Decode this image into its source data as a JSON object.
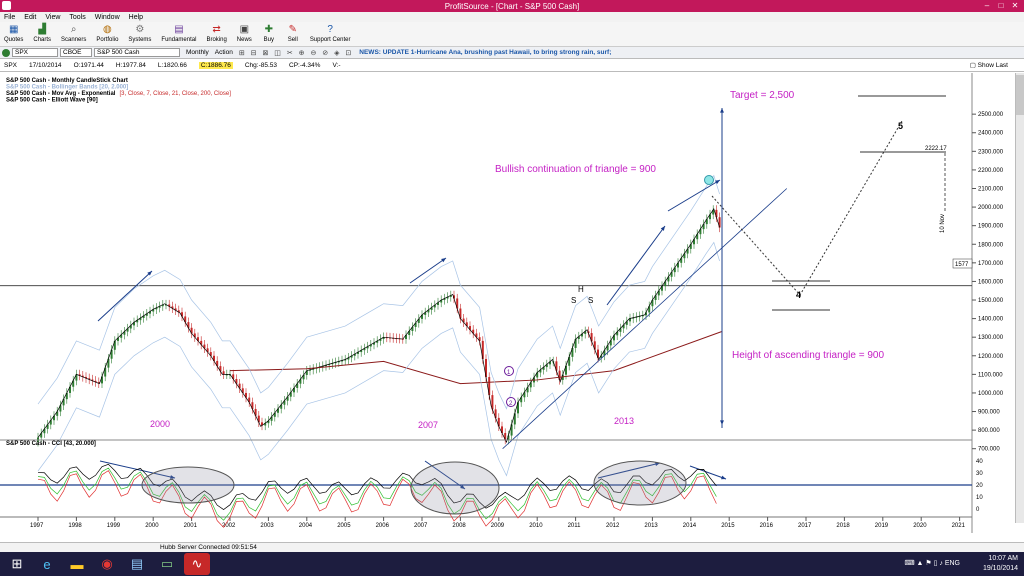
{
  "window": {
    "title": "ProfitSource - [Chart - S&P 500 Cash]",
    "min": "–",
    "max": "□",
    "close": "✕"
  },
  "menu": [
    "File",
    "Edit",
    "View",
    "Tools",
    "Window",
    "Help"
  ],
  "toolbar": [
    {
      "label": "Quotes",
      "icon": "quotes-icon"
    },
    {
      "label": "Charts",
      "icon": "charts-icon"
    },
    {
      "label": "Scanners",
      "icon": "scanners-icon"
    },
    {
      "label": "Portfolio",
      "icon": "portfolio-icon"
    },
    {
      "label": "Systems",
      "icon": "systems-icon"
    },
    {
      "label": "Fundamental",
      "icon": "fundamental-icon"
    },
    {
      "label": "Broking",
      "icon": "broking-icon"
    },
    {
      "label": "News",
      "icon": "news-icon"
    },
    {
      "label": "Buy",
      "icon": "buy-icon"
    },
    {
      "label": "Sell",
      "icon": "sell-icon"
    },
    {
      "label": "Support Center",
      "icon": "help-icon"
    }
  ],
  "subbar": {
    "symbol": "SPX",
    "exchange": "CBOE",
    "name": "S&P 500 Cash",
    "period": "Monthly",
    "action": "Action",
    "news": "NEWS: UPDATE 1-Hurricane Ana, brushing past Hawaii, to bring strong rain, surf;"
  },
  "info": {
    "sym": "SPX",
    "date": "17/10/2014",
    "open": "O:1971.44",
    "high": "H:1977.84",
    "low": "L:1820.66",
    "close": "C:1886.76",
    "chg": "Chg:-85.53",
    "pct": "CP:-4.34%",
    "v": "V:-",
    "show_last": "Show Last"
  },
  "legend": [
    {
      "text": "S&P 500 Cash - Monthly CandleStick Chart",
      "color": "#000000"
    },
    {
      "text": "S&P 500 Cash - Bollinger Bands [20, 2.000]",
      "color": "#9bb3d6"
    },
    {
      "text": "S&P 500 Cash - Mov Avg - Exponential",
      "color": "#000000",
      "extra": "[3, Close, 7, Close, 21, Close, 200, Close]"
    },
    {
      "text": "S&P 500 Cash - Elliott Wave [90]",
      "color": "#000000"
    }
  ],
  "annotations": {
    "target": "Target = 2,500",
    "bullish": "Bullish continuation of triangle = 900",
    "height": "Height of ascending triangle = 900",
    "y2000": "2000",
    "y2007": "2007",
    "y2013": "2013",
    "wave5": "5",
    "wave4": "4",
    "h": "H",
    "s1": "S",
    "s2": "S",
    "price_2222": "2222.17",
    "price_1577": "1577",
    "nov": "10 Nov",
    "w1": "1",
    "w2": "2"
  },
  "chart_data": {
    "type": "candlestick",
    "price_axis": [
      "2500.000",
      "2400.000",
      "2300.000",
      "2200.000",
      "2100.000",
      "2000.000",
      "1900.000",
      "1800.000",
      "1700.000",
      "1600.000",
      "1500.000",
      "1400.000",
      "1300.000",
      "1200.000",
      "1100.000",
      "1000.000",
      "900.000",
      "800.000",
      "700.000"
    ],
    "x_labels": [
      "1997",
      "1998",
      "1999",
      "2000",
      "2001",
      "2002",
      "2003",
      "2004",
      "2005",
      "2006",
      "2007",
      "2008",
      "2009",
      "2010",
      "2011",
      "2012",
      "2013",
      "2014",
      "2015",
      "2016",
      "2017",
      "2018",
      "2019",
      "2020",
      "2021"
    ],
    "cci_label": "S&P 500 Cash - CCI [43, 20.000]",
    "cci_axis": [
      "40",
      "30",
      "20",
      "10",
      "0"
    ],
    "ylim": [
      650,
      2560
    ],
    "price_path": [
      [
        1997,
        760
      ],
      [
        1997.5,
        900
      ],
      [
        1998,
        1100
      ],
      [
        1998.6,
        1050
      ],
      [
        1999,
        1280
      ],
      [
        1999.5,
        1380
      ],
      [
        2000,
        1450
      ],
      [
        2000.3,
        1480
      ],
      [
        2000.7,
        1430
      ],
      [
        2001,
        1320
      ],
      [
        2001.5,
        1200
      ],
      [
        2001.8,
        1100
      ],
      [
        2002,
        1100
      ],
      [
        2002.5,
        950
      ],
      [
        2002.8,
        820
      ],
      [
        2003,
        850
      ],
      [
        2003.5,
        980
      ],
      [
        2004,
        1120
      ],
      [
        2005,
        1180
      ],
      [
        2006,
        1300
      ],
      [
        2006.5,
        1290
      ],
      [
        2007,
        1420
      ],
      [
        2007.5,
        1500
      ],
      [
        2007.8,
        1530
      ],
      [
        2008,
        1400
      ],
      [
        2008.5,
        1280
      ],
      [
        2008.8,
        930
      ],
      [
        2009,
        820
      ],
      [
        2009.2,
        735
      ],
      [
        2009.5,
        950
      ],
      [
        2010,
        1110
      ],
      [
        2010.4,
        1180
      ],
      [
        2010.6,
        1060
      ],
      [
        2011,
        1290
      ],
      [
        2011.3,
        1340
      ],
      [
        2011.6,
        1180
      ],
      [
        2012,
        1310
      ],
      [
        2012.4,
        1400
      ],
      [
        2012.8,
        1420
      ],
      [
        2013,
        1500
      ],
      [
        2013.5,
        1650
      ],
      [
        2014,
        1800
      ],
      [
        2014.4,
        1930
      ],
      [
        2014.6,
        1990
      ],
      [
        2014.75,
        1890
      ]
    ],
    "ema200_path": [
      [
        2002,
        1120
      ],
      [
        2004,
        1130
      ],
      [
        2006,
        1170
      ],
      [
        2008,
        1050
      ],
      [
        2010,
        1070
      ],
      [
        2012,
        1120
      ],
      [
        2014.8,
        1330
      ]
    ],
    "cci_values": [
      [
        1997,
        25
      ],
      [
        1998,
        30
      ],
      [
        1999,
        32
      ],
      [
        2000,
        26
      ],
      [
        2001,
        12
      ],
      [
        2002,
        4
      ],
      [
        2003,
        18
      ],
      [
        2004,
        20
      ],
      [
        2005,
        16
      ],
      [
        2006,
        22
      ],
      [
        2007,
        26
      ],
      [
        2008,
        8
      ],
      [
        2009,
        6
      ],
      [
        2010,
        20
      ],
      [
        2011,
        22
      ],
      [
        2012,
        18
      ],
      [
        2013,
        26
      ],
      [
        2014,
        30
      ],
      [
        2014.8,
        24
      ]
    ]
  }
}
